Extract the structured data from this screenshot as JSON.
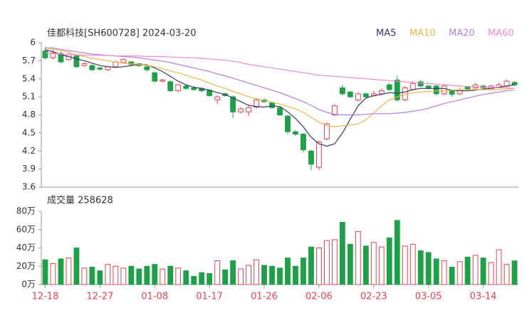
{
  "chart_data": {
    "type": "candlestick",
    "title": "佳都科技[SH600728] 2024-03-20",
    "volume_title": "成交量 258628",
    "categories": [
      "12-18",
      null,
      null,
      null,
      null,
      null,
      null,
      "12-27",
      null,
      null,
      null,
      null,
      null,
      null,
      "01-08",
      null,
      null,
      null,
      null,
      null,
      null,
      "01-17",
      null,
      null,
      null,
      null,
      null,
      null,
      "01-26",
      null,
      null,
      null,
      null,
      null,
      null,
      "02-06",
      null,
      null,
      null,
      null,
      null,
      null,
      "02-23",
      null,
      null,
      null,
      null,
      null,
      null,
      "03-05",
      null,
      null,
      null,
      null,
      null,
      null,
      "03-14",
      null,
      null,
      null,
      null
    ],
    "open": [
      5.86,
      5.75,
      5.82,
      5.72,
      5.78,
      5.62,
      5.62,
      5.58,
      5.55,
      5.6,
      5.67,
      5.68,
      5.65,
      5.6,
      5.5,
      5.36,
      5.35,
      5.2,
      5.28,
      5.25,
      5.24,
      5.21,
      5.05,
      5.15,
      5.1,
      4.85,
      4.85,
      4.93,
      5.05,
      5.0,
      4.92,
      4.78,
      4.52,
      4.48,
      4.2,
      3.93,
      4.4,
      4.8,
      5.25,
      5.18,
      5.05,
      5.15,
      5.12,
      5.15,
      5.3,
      5.38,
      5.05,
      5.22,
      5.35,
      5.28,
      5.28,
      5.15,
      5.2,
      5.15,
      5.26,
      5.25,
      5.28,
      5.22,
      5.26,
      5.28,
      5.34
    ],
    "high": [
      5.92,
      5.88,
      5.85,
      5.83,
      5.8,
      5.67,
      5.64,
      5.6,
      5.62,
      5.7,
      5.74,
      5.7,
      5.66,
      5.62,
      5.52,
      5.4,
      5.37,
      5.32,
      5.3,
      5.27,
      5.26,
      5.23,
      5.12,
      5.17,
      5.12,
      4.93,
      4.95,
      5.08,
      5.07,
      5.02,
      4.94,
      4.8,
      4.55,
      4.5,
      4.22,
      4.37,
      4.68,
      4.98,
      5.3,
      5.2,
      5.18,
      5.17,
      5.2,
      5.24,
      5.33,
      5.45,
      5.28,
      5.36,
      5.38,
      5.3,
      5.3,
      5.31,
      5.22,
      5.25,
      5.28,
      5.33,
      5.3,
      5.3,
      5.33,
      5.39,
      5.36
    ],
    "low": [
      5.72,
      5.72,
      5.66,
      5.7,
      5.58,
      5.6,
      5.53,
      5.54,
      5.53,
      5.58,
      5.65,
      5.62,
      5.6,
      5.52,
      5.34,
      5.34,
      5.18,
      5.18,
      5.22,
      5.2,
      5.18,
      5.1,
      4.98,
      5.1,
      4.75,
      4.82,
      4.78,
      4.9,
      5.0,
      4.9,
      4.78,
      4.48,
      4.45,
      4.18,
      3.88,
      3.88,
      4.38,
      4.78,
      5.12,
      5.08,
      5.02,
      5.08,
      5.1,
      5.13,
      5.2,
      5.02,
      5.03,
      5.2,
      5.26,
      5.22,
      5.12,
      5.13,
      5.1,
      5.13,
      5.2,
      5.23,
      5.22,
      5.2,
      5.24,
      5.26,
      5.28
    ],
    "close": [
      5.75,
      5.83,
      5.68,
      5.8,
      5.6,
      5.65,
      5.55,
      5.56,
      5.6,
      5.68,
      5.72,
      5.64,
      5.62,
      5.55,
      5.36,
      5.38,
      5.2,
      5.3,
      5.24,
      5.22,
      5.2,
      5.12,
      5.1,
      5.12,
      4.85,
      4.9,
      4.92,
      5.05,
      5.02,
      4.92,
      4.8,
      4.52,
      4.48,
      4.22,
      3.98,
      4.35,
      4.65,
      4.95,
      5.15,
      5.1,
      5.15,
      5.1,
      5.15,
      5.2,
      5.22,
      5.05,
      5.25,
      5.32,
      5.28,
      5.25,
      5.15,
      5.28,
      5.14,
      5.22,
      5.22,
      5.3,
      5.25,
      5.28,
      5.3,
      5.36,
      5.3
    ],
    "volume": [
      27,
      23,
      28,
      29,
      40,
      18,
      19,
      15,
      22,
      20,
      18,
      20,
      17,
      20,
      22,
      17,
      20,
      18,
      15,
      9,
      13,
      12,
      26,
      16,
      26,
      17,
      21,
      27,
      21,
      20,
      18,
      29,
      20,
      29,
      41,
      40,
      48,
      49,
      68,
      44,
      58,
      42,
      46,
      41,
      51,
      70,
      42,
      44,
      37,
      35,
      28,
      26,
      19,
      25,
      30,
      32,
      29,
      24,
      38,
      22,
      25.8628
    ],
    "up_color": "#e8414e",
    "down_color": "#1da147",
    "series": [
      {
        "name": "MA5",
        "color": "#35386a",
        "values": [
          5.88,
          5.85,
          5.8,
          5.77,
          5.73,
          5.7,
          5.66,
          5.62,
          5.6,
          5.59,
          5.6,
          5.62,
          5.64,
          5.63,
          5.58,
          5.52,
          5.44,
          5.36,
          5.3,
          5.26,
          5.24,
          5.21,
          5.17,
          5.14,
          5.08,
          5.02,
          4.96,
          4.94,
          4.93,
          4.95,
          4.94,
          4.85,
          4.74,
          4.6,
          4.43,
          4.32,
          4.28,
          4.32,
          4.5,
          4.73,
          4.95,
          5.08,
          5.12,
          5.14,
          5.17,
          5.16,
          5.18,
          5.22,
          5.24,
          5.24,
          5.24,
          5.24,
          5.21,
          5.2,
          5.2,
          5.21,
          5.23,
          5.24,
          5.26,
          5.28,
          5.3
        ]
      },
      {
        "name": "MA10",
        "color": "#f2b544",
        "values": [
          5.9,
          5.89,
          5.87,
          5.84,
          5.8,
          5.77,
          5.74,
          5.72,
          5.7,
          5.68,
          5.66,
          5.65,
          5.64,
          5.62,
          5.6,
          5.57,
          5.53,
          5.5,
          5.46,
          5.42,
          5.38,
          5.33,
          5.28,
          5.24,
          5.19,
          5.15,
          5.1,
          5.07,
          5.04,
          5.01,
          4.98,
          4.94,
          4.9,
          4.84,
          4.76,
          4.68,
          4.62,
          4.6,
          4.62,
          4.63,
          4.65,
          4.72,
          4.83,
          4.95,
          5.05,
          5.1,
          5.14,
          5.17,
          5.18,
          5.19,
          5.2,
          5.2,
          5.21,
          5.22,
          5.22,
          5.22,
          5.22,
          5.22,
          5.22,
          5.23,
          5.24
        ]
      },
      {
        "name": "MA20",
        "color": "#b77ce0",
        "values": [
          5.92,
          5.91,
          5.89,
          5.87,
          5.85,
          5.83,
          5.81,
          5.8,
          5.79,
          5.78,
          5.77,
          5.76,
          5.75,
          5.73,
          5.71,
          5.69,
          5.67,
          5.64,
          5.61,
          5.58,
          5.55,
          5.52,
          5.48,
          5.45,
          5.41,
          5.37,
          5.33,
          5.29,
          5.25,
          5.21,
          5.17,
          5.12,
          5.07,
          5.02,
          4.96,
          4.89,
          4.84,
          4.81,
          4.8,
          4.8,
          4.8,
          4.81,
          4.82,
          4.82,
          4.82,
          4.83,
          4.84,
          4.86,
          4.88,
          4.91,
          4.95,
          4.99,
          5.02,
          5.05,
          5.08,
          5.11,
          5.14,
          5.16,
          5.18,
          5.2,
          5.21
        ]
      },
      {
        "name": "MA60",
        "color": "#f08ccb",
        "values": [
          5.83,
          5.82,
          5.81,
          5.8,
          5.8,
          5.79,
          5.79,
          5.79,
          5.79,
          5.78,
          5.78,
          5.78,
          5.78,
          5.77,
          5.77,
          5.77,
          5.76,
          5.76,
          5.75,
          5.75,
          5.74,
          5.73,
          5.72,
          5.71,
          5.69,
          5.67,
          5.64,
          5.62,
          5.6,
          5.58,
          5.56,
          5.54,
          5.52,
          5.5,
          5.48,
          5.46,
          5.45,
          5.44,
          5.43,
          5.42,
          5.41,
          5.4,
          5.39,
          5.38,
          5.37,
          5.36,
          5.35,
          5.34,
          5.33,
          5.32,
          5.31,
          5.3,
          5.29,
          5.28,
          5.27,
          5.27,
          5.26,
          5.26,
          5.25,
          5.25,
          5.24
        ]
      }
    ],
    "ylim": [
      3.6,
      6
    ],
    "yticks": [
      6,
      5.7,
      5.4,
      5.1,
      4.8,
      4.5,
      4.2,
      3.9,
      3.6
    ],
    "y2lim": [
      0,
      80
    ],
    "y2ticks": [
      {
        "value": 80,
        "label": "80万"
      },
      {
        "value": 60,
        "label": "60万"
      },
      {
        "value": 40,
        "label": "40万"
      },
      {
        "value": 20,
        "label": "20万"
      },
      {
        "value": 0,
        "label": "0万"
      }
    ],
    "grid": false
  }
}
